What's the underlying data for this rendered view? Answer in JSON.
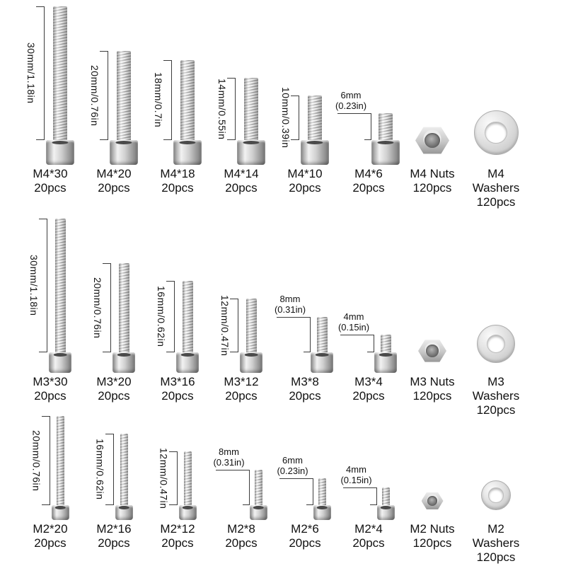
{
  "colors": {
    "background": "#ffffff",
    "text": "#111111",
    "dim_line": "#3c3c3c",
    "metal_light": "#f2f2f2",
    "metal_dark": "#767676"
  },
  "rows": [
    {
      "series": "M4",
      "items": [
        {
          "kind": "screw",
          "mm": 30,
          "dim": "30mm/1.18in",
          "dim_style": "vertical",
          "caption_lines": [
            "M4*30",
            "20pcs"
          ]
        },
        {
          "kind": "screw",
          "mm": 20,
          "dim": "20mm/0.76in",
          "dim_style": "vertical",
          "caption_lines": [
            "M4*20",
            "20pcs"
          ]
        },
        {
          "kind": "screw",
          "mm": 18,
          "dim": "18mm/0.7in",
          "dim_style": "vertical",
          "caption_lines": [
            "M4*18",
            "20pcs"
          ]
        },
        {
          "kind": "screw",
          "mm": 14,
          "dim": "14mm/0.55in",
          "dim_style": "vertical",
          "caption_lines": [
            "M4*14",
            "20pcs"
          ]
        },
        {
          "kind": "screw",
          "mm": 10,
          "dim": "10mm/0.39in",
          "dim_style": "vertical",
          "caption_lines": [
            "M4*10",
            "20pcs"
          ]
        },
        {
          "kind": "screw",
          "mm": 6,
          "dim": "6mm (0.23in)",
          "dim_style": "horizontal",
          "dim_lines": [
            "6mm",
            "(0.23in)"
          ],
          "caption_lines": [
            "M4*6",
            "20pcs"
          ]
        },
        {
          "kind": "nut",
          "caption_lines": [
            "M4 Nuts",
            "120pcs"
          ]
        },
        {
          "kind": "washer",
          "caption_lines": [
            "M4",
            "Washers",
            "120pcs"
          ]
        }
      ]
    },
    {
      "series": "M3",
      "items": [
        {
          "kind": "screw",
          "mm": 30,
          "dim": "30mm/1.18in",
          "dim_style": "vertical",
          "caption_lines": [
            "M3*30",
            "20pcs"
          ]
        },
        {
          "kind": "screw",
          "mm": 20,
          "dim": "20mm/0.76in",
          "dim_style": "vertical",
          "caption_lines": [
            "M3*20",
            "20pcs"
          ]
        },
        {
          "kind": "screw",
          "mm": 16,
          "dim": "16mm/0.62in",
          "dim_style": "vertical",
          "caption_lines": [
            "M3*16",
            "20pcs"
          ]
        },
        {
          "kind": "screw",
          "mm": 12,
          "dim": "12mm/0.47in",
          "dim_style": "vertical",
          "caption_lines": [
            "M3*12",
            "20pcs"
          ]
        },
        {
          "kind": "screw",
          "mm": 8,
          "dim": "8mm (0.31in)",
          "dim_style": "horizontal",
          "dim_lines": [
            "8mm",
            "(0.31in)"
          ],
          "caption_lines": [
            "M3*8",
            "20pcs"
          ]
        },
        {
          "kind": "screw",
          "mm": 4,
          "dim": "4mm (0.15in)",
          "dim_style": "horizontal",
          "dim_lines": [
            "4mm",
            "(0.15in)"
          ],
          "caption_lines": [
            "M3*4",
            "20pcs"
          ]
        },
        {
          "kind": "nut",
          "caption_lines": [
            "M3 Nuts",
            "120pcs"
          ]
        },
        {
          "kind": "washer",
          "caption_lines": [
            "M3",
            "Washers",
            "120pcs"
          ]
        }
      ]
    },
    {
      "series": "M2",
      "items": [
        {
          "kind": "screw",
          "mm": 20,
          "dim": "20mm/0.76in",
          "dim_style": "vertical",
          "caption_lines": [
            "M2*20",
            "20pcs"
          ]
        },
        {
          "kind": "screw",
          "mm": 16,
          "dim": "16mm/0.62in",
          "dim_style": "vertical",
          "caption_lines": [
            "M2*16",
            "20pcs"
          ]
        },
        {
          "kind": "screw",
          "mm": 12,
          "dim": "12mm/0.47in",
          "dim_style": "vertical",
          "caption_lines": [
            "M2*12",
            "20pcs"
          ]
        },
        {
          "kind": "screw",
          "mm": 8,
          "dim": "8mm (0.31in)",
          "dim_style": "horizontal",
          "dim_lines": [
            "8mm",
            "(0.31in)"
          ],
          "caption_lines": [
            "M2*8",
            "20pcs"
          ]
        },
        {
          "kind": "screw",
          "mm": 6,
          "dim": "6mm (0.23in)",
          "dim_style": "horizontal",
          "dim_lines": [
            "6mm",
            "(0.23in)"
          ],
          "caption_lines": [
            "M2*6",
            "20pcs"
          ]
        },
        {
          "kind": "screw",
          "mm": 4,
          "dim": "4mm (0.15in)",
          "dim_style": "horizontal",
          "dim_lines": [
            "4mm",
            "(0.15in)"
          ],
          "caption_lines": [
            "M2*4",
            "20pcs"
          ]
        },
        {
          "kind": "nut",
          "caption_lines": [
            "M2 Nuts",
            "120pcs"
          ]
        },
        {
          "kind": "washer",
          "caption_lines": [
            "M2",
            "Washers",
            "120pcs"
          ]
        }
      ]
    }
  ]
}
